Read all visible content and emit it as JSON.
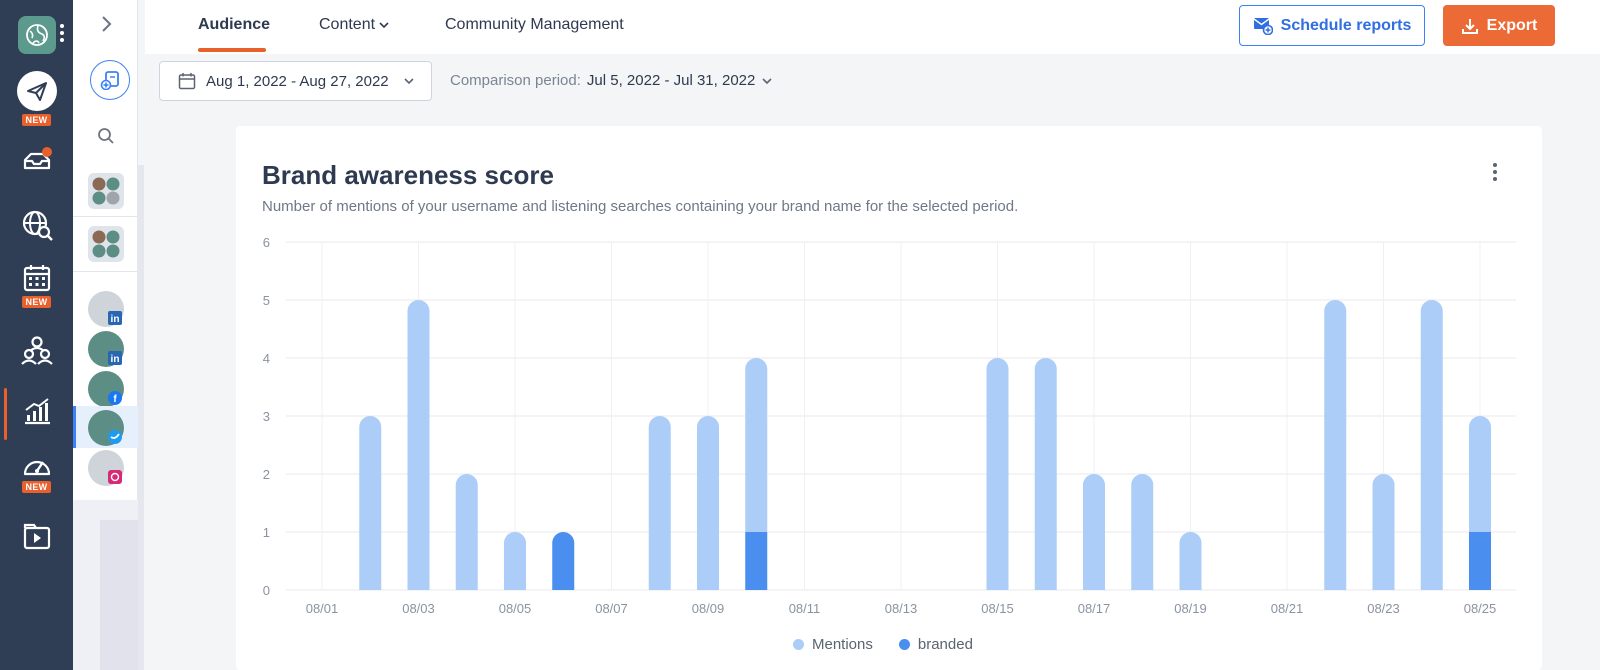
{
  "nav": {
    "items": [
      {
        "name": "publish",
        "badge": "NEW"
      },
      {
        "name": "inbox",
        "badge": ""
      },
      {
        "name": "listening",
        "badge": ""
      },
      {
        "name": "calendar",
        "badge": "NEW"
      },
      {
        "name": "team",
        "badge": ""
      },
      {
        "name": "analytics",
        "badge": ""
      },
      {
        "name": "dashboard",
        "badge": "NEW"
      },
      {
        "name": "media",
        "badge": ""
      }
    ],
    "accent": "#e8602c"
  },
  "header": {
    "tabs": [
      {
        "label": "Audience",
        "active": true
      },
      {
        "label": "Content",
        "active": false
      },
      {
        "label": "Community Management",
        "active": false
      }
    ],
    "schedule_label": "Schedule reports",
    "export_label": "Export"
  },
  "filters": {
    "date_range": "Aug 1, 2022 - Aug 27, 2022",
    "comparison_label": "Comparison period:",
    "comparison_value": "Jul 5, 2022 - Jul 31, 2022"
  },
  "card": {
    "title": "Brand awareness score",
    "subtitle": "Number of mentions of your username and listening searches containing your brand name for the selected period."
  },
  "chart_data": {
    "type": "bar",
    "stacked": true,
    "title": "Brand awareness score",
    "xlabel": "",
    "ylabel": "",
    "ylim": [
      0,
      6
    ],
    "yticks": [
      "0",
      "1",
      "2",
      "3",
      "4",
      "5",
      "6"
    ],
    "xtick_labels": [
      "08/01",
      "08/03",
      "08/05",
      "08/07",
      "08/09",
      "08/11",
      "08/13",
      "08/15",
      "08/17",
      "08/19",
      "08/21",
      "08/23",
      "08/25"
    ],
    "categories": [
      "08/01",
      "08/02",
      "08/03",
      "08/04",
      "08/05",
      "08/06",
      "08/07",
      "08/08",
      "08/09",
      "08/10",
      "08/11",
      "08/12",
      "08/13",
      "08/14",
      "08/15",
      "08/16",
      "08/17",
      "08/18",
      "08/19",
      "08/20",
      "08/21",
      "08/22",
      "08/23",
      "08/24",
      "08/25"
    ],
    "series": [
      {
        "name": "branded",
        "color": "#4a8ef0",
        "values": [
          0,
          0,
          0,
          0,
          0,
          1,
          0,
          0,
          0,
          1,
          0,
          0,
          0,
          0,
          0,
          0,
          0,
          0,
          0,
          0,
          0,
          0,
          0,
          0,
          1
        ]
      },
      {
        "name": "Mentions",
        "color": "#abcdf8",
        "values": [
          0,
          3,
          5,
          2,
          1,
          0,
          0,
          3,
          3,
          3,
          0,
          0,
          0,
          0,
          4,
          4,
          2,
          2,
          1,
          0,
          0,
          5,
          2,
          5,
          2
        ]
      }
    ],
    "grid": true,
    "legend_position": "bottom-center"
  }
}
